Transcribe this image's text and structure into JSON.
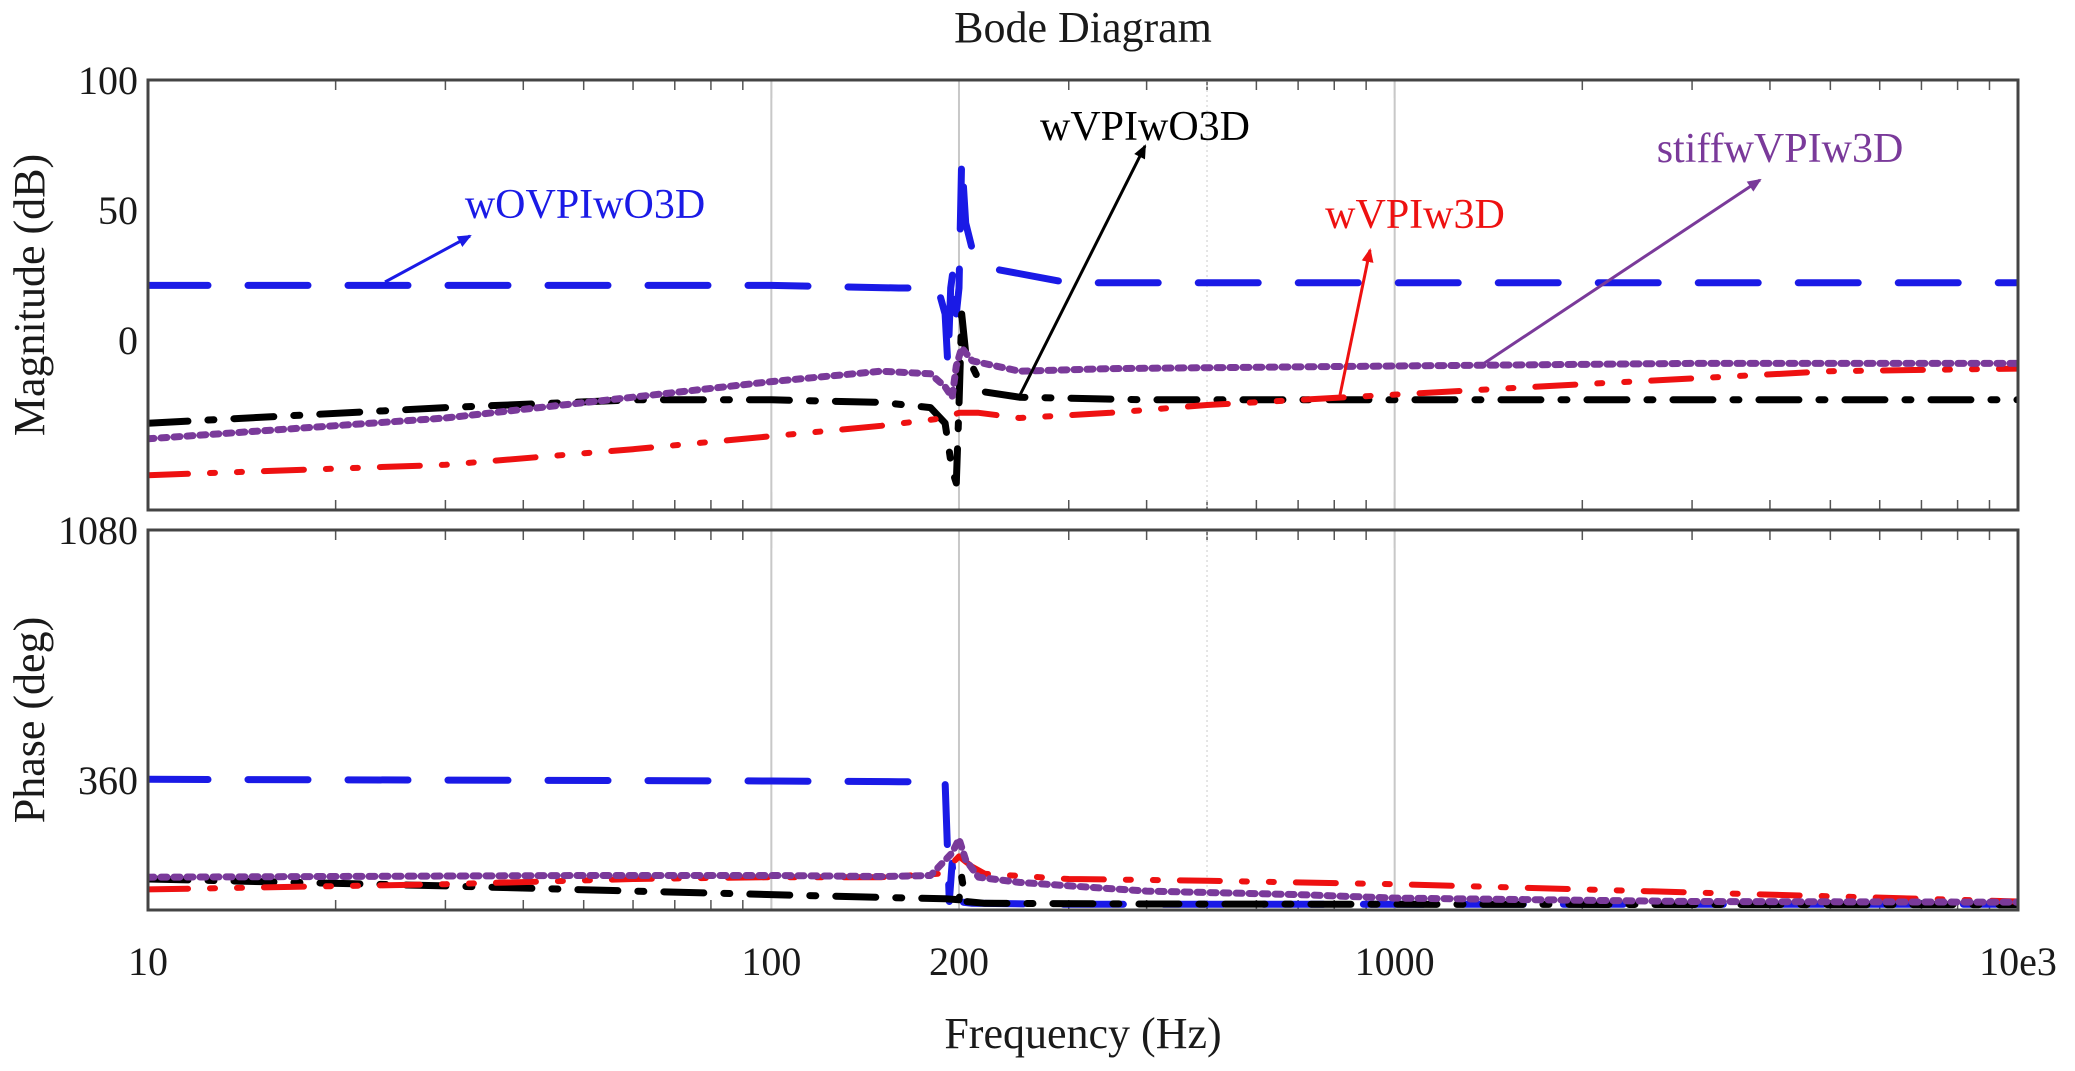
{
  "chart_data": {
    "type": "line",
    "title": "Bode Diagram",
    "xlabel": "Frequency (Hz)",
    "x_scale": "log",
    "xlim": [
      10,
      10000
    ],
    "x_ticks": [
      {
        "value": 10,
        "label": "10"
      },
      {
        "value": 100,
        "label": "100"
      },
      {
        "value": 200,
        "label": "200"
      },
      {
        "value": 1000,
        "label": "1000"
      },
      {
        "value": 10000,
        "label": "10e3"
      }
    ],
    "grid": true,
    "colors": {
      "blue": "#1a1ae6",
      "black": "#000000",
      "red": "#ee1111",
      "purple": "#7a3a9a"
    },
    "panels": [
      {
        "name": "magnitude",
        "ylabel": "Magnitude (dB)",
        "ylim": [
          -80,
          100
        ],
        "y_ticks": [
          {
            "value": 100,
            "label": "100"
          },
          {
            "value": 50,
            "label": "50"
          },
          {
            "value": 0,
            "label": "0"
          }
        ]
      },
      {
        "name": "phase",
        "ylabel": "Phase (deg)",
        "ylim": [
          -9,
          1080
        ],
        "y_ticks": [
          {
            "value": 1080,
            "label": "1080"
          },
          {
            "value": 360,
            "label": "360"
          }
        ]
      }
    ],
    "series": [
      {
        "name": "wOVPIwO3D",
        "color": "#1a1ae6",
        "dash": "long-dash",
        "magnitude": [
          [
            10,
            21
          ],
          [
            100,
            21
          ],
          [
            160,
            20
          ],
          [
            185,
            20
          ],
          [
            190,
            10
          ],
          [
            192,
            -10
          ],
          [
            194,
            20
          ],
          [
            196,
            28
          ],
          [
            198,
            10
          ],
          [
            200,
            20
          ],
          [
            202,
            70
          ],
          [
            205,
            45
          ],
          [
            210,
            35
          ],
          [
            220,
            28
          ],
          [
            300,
            22
          ],
          [
            1000,
            22
          ],
          [
            10000,
            22
          ]
        ],
        "phase": [
          [
            10,
            362
          ],
          [
            100,
            357
          ],
          [
            160,
            355
          ],
          [
            190,
            355
          ],
          [
            193,
            10
          ],
          [
            195,
            120
          ],
          [
            197,
            30
          ],
          [
            199,
            10
          ],
          [
            210,
            5
          ],
          [
            300,
            2
          ],
          [
            1000,
            2
          ],
          [
            10000,
            2
          ]
        ]
      },
      {
        "name": "wVPIwO3D",
        "color": "#000000",
        "dash": "dash-dot",
        "magnitude": [
          [
            10,
            -32
          ],
          [
            30,
            -26
          ],
          [
            60,
            -23
          ],
          [
            100,
            -23
          ],
          [
            150,
            -24
          ],
          [
            180,
            -26
          ],
          [
            190,
            -32
          ],
          [
            195,
            -50
          ],
          [
            198,
            -55
          ],
          [
            200,
            -25
          ],
          [
            202,
            10
          ],
          [
            205,
            -5
          ],
          [
            220,
            -20
          ],
          [
            250,
            -22
          ],
          [
            400,
            -23
          ],
          [
            1000,
            -23
          ],
          [
            10000,
            -23
          ]
        ],
        "phase": [
          [
            10,
            75
          ],
          [
            30,
            55
          ],
          [
            60,
            40
          ],
          [
            100,
            30
          ],
          [
            150,
            22
          ],
          [
            190,
            18
          ],
          [
            200,
            15
          ],
          [
            202,
            80
          ],
          [
            205,
            10
          ],
          [
            220,
            5
          ],
          [
            400,
            3
          ],
          [
            1000,
            2
          ],
          [
            10000,
            1
          ]
        ]
      },
      {
        "name": "wVPIw3D",
        "color": "#ee1111",
        "dash": "dash-dot-dot",
        "magnitude": [
          [
            10,
            -52
          ],
          [
            30,
            -48
          ],
          [
            60,
            -42
          ],
          [
            100,
            -37
          ],
          [
            150,
            -33
          ],
          [
            190,
            -30
          ],
          [
            200,
            -28
          ],
          [
            215,
            -28
          ],
          [
            250,
            -30
          ],
          [
            350,
            -28
          ],
          [
            500,
            -25
          ],
          [
            1000,
            -21
          ],
          [
            2000,
            -17
          ],
          [
            5000,
            -12
          ],
          [
            10000,
            -11
          ]
        ],
        "phase": [
          [
            10,
            45
          ],
          [
            30,
            60
          ],
          [
            60,
            75
          ],
          [
            100,
            80
          ],
          [
            150,
            80
          ],
          [
            185,
            90
          ],
          [
            195,
            120
          ],
          [
            200,
            140
          ],
          [
            210,
            110
          ],
          [
            220,
            90
          ],
          [
            300,
            75
          ],
          [
            500,
            70
          ],
          [
            1000,
            60
          ],
          [
            2000,
            45
          ],
          [
            5000,
            25
          ],
          [
            10000,
            10
          ]
        ]
      },
      {
        "name": "stiffwVPIw3D",
        "color": "#7a3a9a",
        "dash": "dotted",
        "magnitude": [
          [
            10,
            -38
          ],
          [
            30,
            -30
          ],
          [
            60,
            -22
          ],
          [
            100,
            -16
          ],
          [
            150,
            -12
          ],
          [
            180,
            -13
          ],
          [
            190,
            -18
          ],
          [
            195,
            -22
          ],
          [
            198,
            -10
          ],
          [
            202,
            -3
          ],
          [
            210,
            -8
          ],
          [
            250,
            -12
          ],
          [
            350,
            -11
          ],
          [
            1000,
            -10
          ],
          [
            3000,
            -9
          ],
          [
            10000,
            -9
          ]
        ],
        "phase": [
          [
            10,
            80
          ],
          [
            50,
            85
          ],
          [
            100,
            85
          ],
          [
            150,
            82
          ],
          [
            180,
            85
          ],
          [
            195,
            150
          ],
          [
            200,
            190
          ],
          [
            205,
            130
          ],
          [
            215,
            80
          ],
          [
            250,
            65
          ],
          [
            400,
            40
          ],
          [
            700,
            30
          ],
          [
            1000,
            20
          ],
          [
            3000,
            10
          ],
          [
            10000,
            8
          ]
        ]
      }
    ],
    "annotations": [
      {
        "text": "wOVPIwO3D",
        "color": "#1a1ae6"
      },
      {
        "text": "wVPIwO3D",
        "color": "#000000"
      },
      {
        "text": "wVPIw3D",
        "color": "#ee1111"
      },
      {
        "text": "stiffwVPIw3D",
        "color": "#7a3a9a"
      }
    ]
  }
}
